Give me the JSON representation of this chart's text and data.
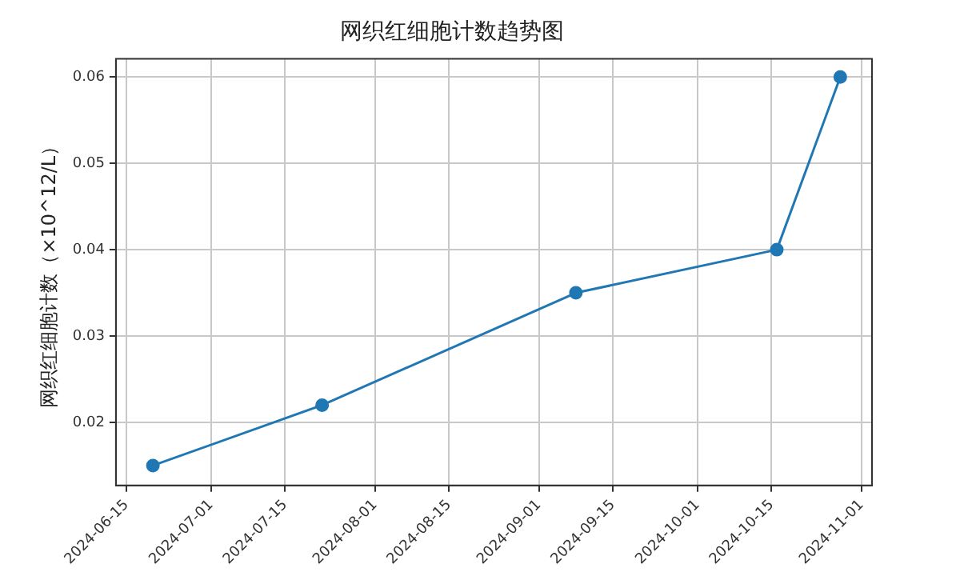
{
  "chart_data": {
    "type": "line",
    "title": "网织红细胞计数趋势图",
    "ylabel": "网织红细胞计数（×10^12/L）",
    "x": [
      "2024-06-20",
      "2024-07-22",
      "2024-09-08",
      "2024-10-16",
      "2024-10-28"
    ],
    "series": [
      {
        "color": "#1f77b4",
        "values": [
          0.015,
          0.022,
          0.035,
          0.04,
          0.06
        ]
      }
    ],
    "xlim": [
      "2024-06-13",
      "2024-11-03"
    ],
    "xticks": [
      "2024-06-15",
      "2024-07-01",
      "2024-07-15",
      "2024-08-01",
      "2024-08-15",
      "2024-09-01",
      "2024-09-15",
      "2024-10-01",
      "2024-10-15",
      "2024-11-01"
    ],
    "ylim": [
      0.0127,
      0.0621
    ],
    "yticks": [
      0.02,
      0.03,
      0.04,
      0.05,
      0.06
    ],
    "grid": true,
    "marker": "circle",
    "line_style": "solid"
  }
}
